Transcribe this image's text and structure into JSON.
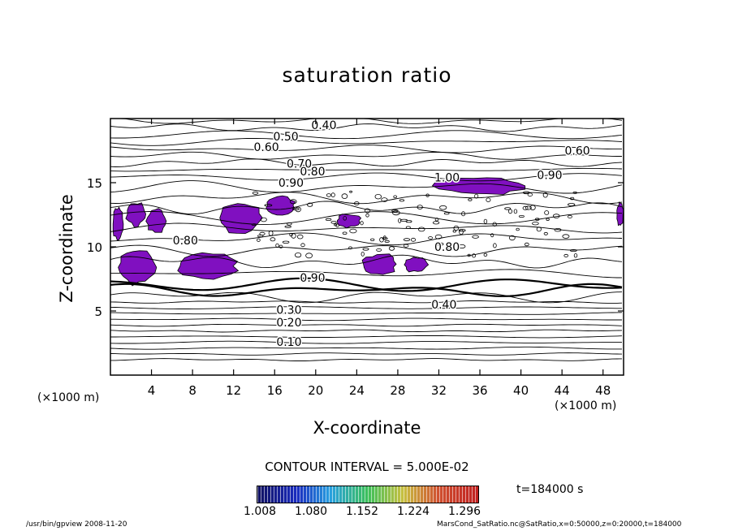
{
  "chart_data": {
    "type": "heatmap",
    "title": "saturation ratio",
    "xlabel": "X-coordinate",
    "ylabel": "Z-coordinate",
    "x_unit_left": "(×1000 m)",
    "x_unit_right": "(×1000 m)",
    "xlim": [
      0,
      50
    ],
    "ylim": [
      0,
      20
    ],
    "xticks": [
      "4",
      "8",
      "12",
      "16",
      "20",
      "24",
      "28",
      "32",
      "36",
      "40",
      "44",
      "48"
    ],
    "yticks": [
      "5",
      "10",
      "15"
    ],
    "contour_interval_text": "CONTOUR INTERVAL = 5.000E-02",
    "contour_labels": [
      {
        "text": "0.40",
        "x": 20.8,
        "z": 19.5
      },
      {
        "text": "0.50",
        "x": 17.1,
        "z": 18.6
      },
      {
        "text": "0.60",
        "x": 15.2,
        "z": 17.8
      },
      {
        "text": "0.60",
        "x": 45.5,
        "z": 17.5
      },
      {
        "text": "0.70",
        "x": 18.4,
        "z": 16.5
      },
      {
        "text": "0.80",
        "x": 19.7,
        "z": 15.9
      },
      {
        "text": "0.90",
        "x": 17.6,
        "z": 15.0
      },
      {
        "text": "1.00",
        "x": 32.8,
        "z": 15.4
      },
      {
        "text": "0.90",
        "x": 42.8,
        "z": 15.6
      },
      {
        "text": "0.80",
        "x": 7.3,
        "z": 10.5
      },
      {
        "text": "0.80",
        "x": 32.8,
        "z": 10.0
      },
      {
        "text": "0.90",
        "x": 19.7,
        "z": 7.6
      },
      {
        "text": "0.40",
        "x": 32.5,
        "z": 5.5
      },
      {
        "text": "0.30",
        "x": 17.4,
        "z": 5.1
      },
      {
        "text": "0.20",
        "x": 17.4,
        "z": 4.1
      },
      {
        "text": "0.10",
        "x": 17.4,
        "z": 2.6
      }
    ],
    "colorbar": {
      "ticks": [
        "1.008",
        "1.080",
        "1.152",
        "1.224",
        "1.296"
      ],
      "range": [
        1.008,
        1.296
      ]
    },
    "supersaturated_regions": [
      {
        "x": [
          0.2,
          1.3
        ],
        "z": [
          10.4,
          13.2
        ],
        "value": 1.01
      },
      {
        "x": [
          1.5,
          3.5
        ],
        "z": [
          11.6,
          13.5
        ],
        "value": 1.01
      },
      {
        "x": [
          3.5,
          5.5
        ],
        "z": [
          11.0,
          13.0
        ],
        "value": 1.01
      },
      {
        "x": [
          10.5,
          15.0
        ],
        "z": [
          11.0,
          13.5
        ],
        "value": 1.01
      },
      {
        "x": [
          15.0,
          18.0
        ],
        "z": [
          12.5,
          14.0
        ],
        "value": 1.01
      },
      {
        "x": [
          22.0,
          24.5
        ],
        "z": [
          11.5,
          12.6
        ],
        "value": 1.01
      },
      {
        "x": [
          31.5,
          40.5
        ],
        "z": [
          14.0,
          15.5
        ],
        "value": 1.01
      },
      {
        "x": [
          49.3,
          50.0
        ],
        "z": [
          11.5,
          13.5
        ],
        "value": 1.01
      },
      {
        "x": [
          0.5,
          4.5
        ],
        "z": [
          7.0,
          9.8
        ],
        "value": 1.01
      },
      {
        "x": [
          6.5,
          12.5
        ],
        "z": [
          7.5,
          9.5
        ],
        "value": 1.01
      },
      {
        "x": [
          24.5,
          28.0
        ],
        "z": [
          7.8,
          9.5
        ],
        "value": 1.01
      },
      {
        "x": [
          28.5,
          31.0
        ],
        "z": [
          8.0,
          9.2
        ],
        "value": 1.01
      }
    ],
    "fill_color": "#8010c0",
    "time_text": "t=184000 s"
  },
  "footer": {
    "left": "/usr/bin/gpview   2008-11-20",
    "right": "MarsCond_SatRatio.nc@SatRatio,x=0:50000,z=0:20000,t=184000"
  }
}
